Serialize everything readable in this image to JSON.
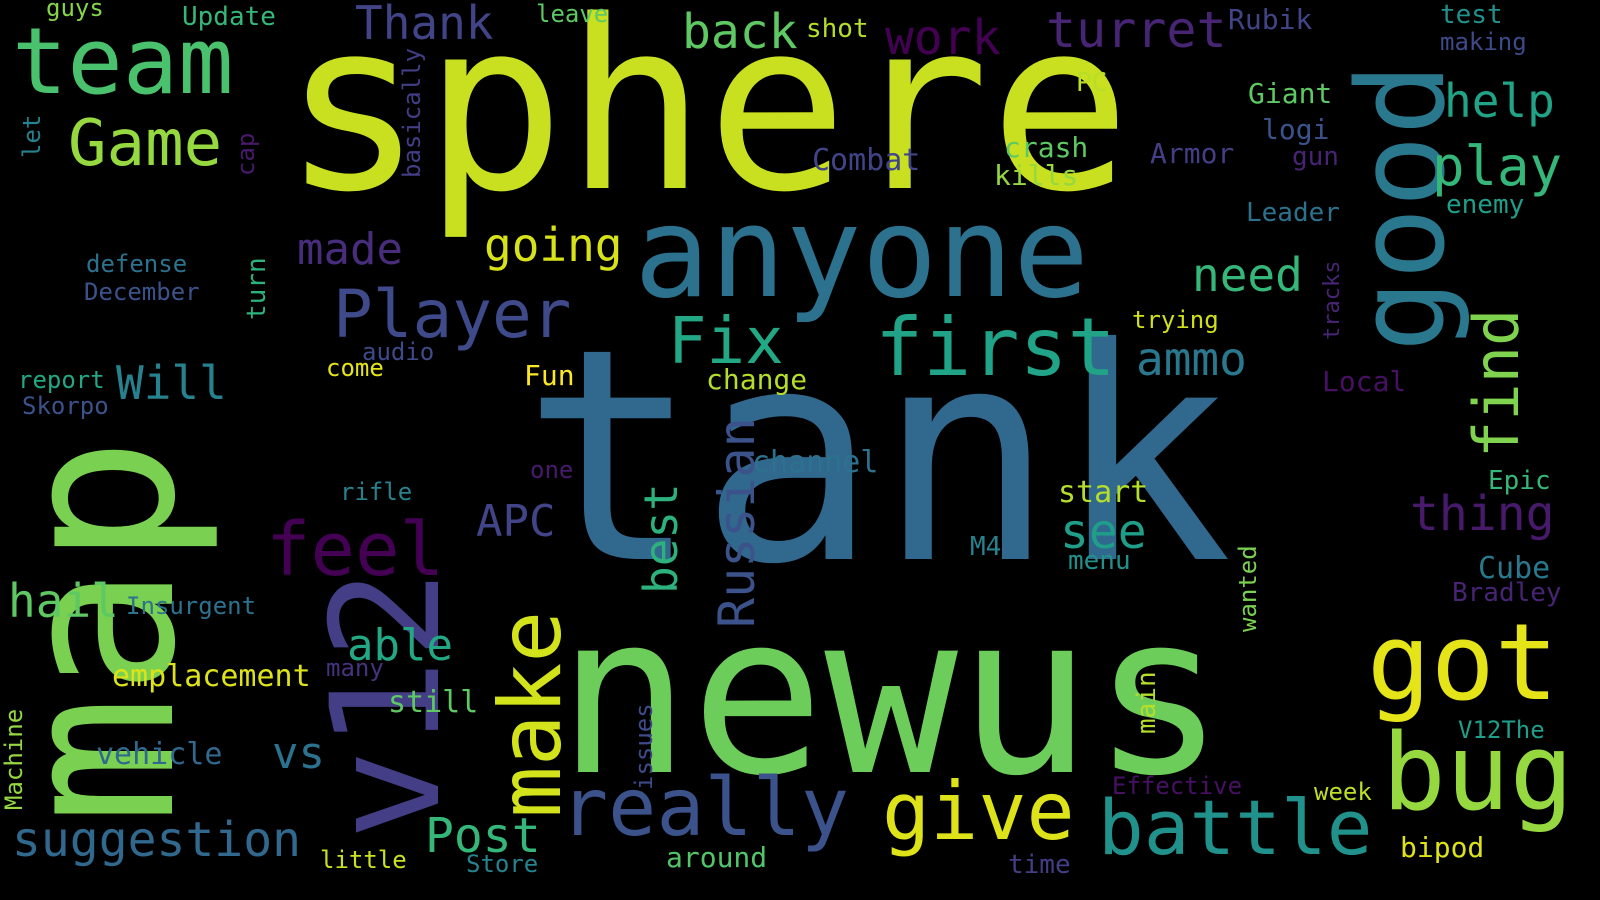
{
  "words": [
    {
      "text": "tank",
      "color": "#31688e"
    },
    {
      "text": "sphere",
      "color": "#c8e020"
    },
    {
      "text": "map",
      "color": "#7ad151"
    },
    {
      "text": "newus",
      "color": "#6ccd5a"
    },
    {
      "text": "v12",
      "color": "#433e85"
    },
    {
      "text": "anyone",
      "color": "#2c728e"
    },
    {
      "text": "team",
      "color": "#4ac16d"
    },
    {
      "text": "good",
      "color": "#2a788e"
    },
    {
      "text": "bug",
      "color": "#95d840"
    },
    {
      "text": "got",
      "color": "#e5e419"
    },
    {
      "text": "make",
      "color": "#d2e21b"
    },
    {
      "text": "really",
      "color": "#3b528b"
    },
    {
      "text": "give",
      "color": "#dde318"
    },
    {
      "text": "battle",
      "color": "#21918c"
    },
    {
      "text": "first",
      "color": "#20a386"
    },
    {
      "text": "feel",
      "color": "#440154"
    },
    {
      "text": "Player",
      "color": "#3e4a89"
    },
    {
      "text": "Fix",
      "color": "#22a884"
    },
    {
      "text": "find",
      "color": "#7fd34e"
    },
    {
      "text": "Game",
      "color": "#95d840"
    },
    {
      "text": "play",
      "color": "#35b779"
    },
    {
      "text": "Russian",
      "color": "#3b528b"
    },
    {
      "text": "suggestion",
      "color": "#31688e"
    },
    {
      "text": "Post",
      "color": "#35b779"
    },
    {
      "text": "turret",
      "color": "#482475"
    },
    {
      "text": "work",
      "color": "#440154"
    },
    {
      "text": "Thank",
      "color": "#414487"
    },
    {
      "text": "back",
      "color": "#5ec962"
    },
    {
      "text": "going",
      "color": "#d8e219"
    },
    {
      "text": "made",
      "color": "#472d7b"
    },
    {
      "text": "need",
      "color": "#35b779"
    },
    {
      "text": "help",
      "color": "#20a386"
    },
    {
      "text": "ammo",
      "color": "#2a788e"
    },
    {
      "text": "thing",
      "color": "#481a6c"
    },
    {
      "text": "see",
      "color": "#1f9e89"
    },
    {
      "text": "best",
      "color": "#2db27d"
    },
    {
      "text": "APC",
      "color": "#414487"
    },
    {
      "text": "able",
      "color": "#22a884"
    },
    {
      "text": "hail",
      "color": "#5ec962"
    },
    {
      "text": "vs",
      "color": "#2c728e"
    },
    {
      "text": "Will",
      "color": "#26828e"
    },
    {
      "text": "emplacement",
      "color": "#dde318"
    },
    {
      "text": "vehicle",
      "color": "#31688e"
    },
    {
      "text": "Update",
      "color": "#35b779"
    },
    {
      "text": "guys",
      "color": "#86d549"
    },
    {
      "text": "shot",
      "color": "#b5de2b"
    },
    {
      "text": "leave",
      "color": "#5ec962"
    },
    {
      "text": "Rubik",
      "color": "#414487"
    },
    {
      "text": "test",
      "color": "#21918c"
    },
    {
      "text": "making",
      "color": "#3e4a89"
    },
    {
      "text": "Giant",
      "color": "#5ec962"
    },
    {
      "text": "logi",
      "color": "#3b528b"
    },
    {
      "text": "PC",
      "color": "#b8de29"
    },
    {
      "text": "crash",
      "color": "#5ec962"
    },
    {
      "text": "kills",
      "color": "#95d840"
    },
    {
      "text": "Armor",
      "color": "#433e85"
    },
    {
      "text": "gun",
      "color": "#482475"
    },
    {
      "text": "Combat",
      "color": "#414487"
    },
    {
      "text": "Leader",
      "color": "#2c728e"
    },
    {
      "text": "enemy",
      "color": "#1f9e89"
    },
    {
      "text": "let",
      "color": "#26828e"
    },
    {
      "text": "basically",
      "color": "#433e85"
    },
    {
      "text": "cap",
      "color": "#481a6c"
    },
    {
      "text": "defense",
      "color": "#2c728e"
    },
    {
      "text": "December",
      "color": "#3b528b"
    },
    {
      "text": "turn",
      "color": "#2db27d"
    },
    {
      "text": "trying",
      "color": "#d0e11c"
    },
    {
      "text": "tracks",
      "color": "#482475"
    },
    {
      "text": "audio",
      "color": "#3e4a89"
    },
    {
      "text": "come",
      "color": "#e5e419"
    },
    {
      "text": "Fun",
      "color": "#fde725"
    },
    {
      "text": "change",
      "color": "#b5de2b"
    },
    {
      "text": "Local",
      "color": "#471063"
    },
    {
      "text": "report",
      "color": "#22a884"
    },
    {
      "text": "Skorpo",
      "color": "#3b528b"
    },
    {
      "text": "one",
      "color": "#481a6c"
    },
    {
      "text": "channel",
      "color": "#2c728e"
    },
    {
      "text": "rifle",
      "color": "#26828e"
    },
    {
      "text": "start",
      "color": "#b5de2b"
    },
    {
      "text": "Epic",
      "color": "#35b779"
    },
    {
      "text": "M4",
      "color": "#26828e"
    },
    {
      "text": "menu",
      "color": "#21918c"
    },
    {
      "text": "wanted",
      "color": "#7ad151"
    },
    {
      "text": "Cube",
      "color": "#2a788e"
    },
    {
      "text": "Bradley",
      "color": "#482475"
    },
    {
      "text": "Insurgent",
      "color": "#2c728e"
    },
    {
      "text": "many",
      "color": "#46337e"
    },
    {
      "text": "still",
      "color": "#5ec962"
    },
    {
      "text": "main",
      "color": "#b5de2b"
    },
    {
      "text": "issues",
      "color": "#3e4a89"
    },
    {
      "text": "V12The",
      "color": "#1f9e89"
    },
    {
      "text": "Machine",
      "color": "#95d840"
    },
    {
      "text": "Effective",
      "color": "#471063"
    },
    {
      "text": "week",
      "color": "#bddf26"
    },
    {
      "text": "little",
      "color": "#cae11f"
    },
    {
      "text": "Store",
      "color": "#26828e"
    },
    {
      "text": "around",
      "color": "#52c569"
    },
    {
      "text": "time",
      "color": "#433e85"
    },
    {
      "text": "bipod",
      "color": "#dde318"
    }
  ]
}
